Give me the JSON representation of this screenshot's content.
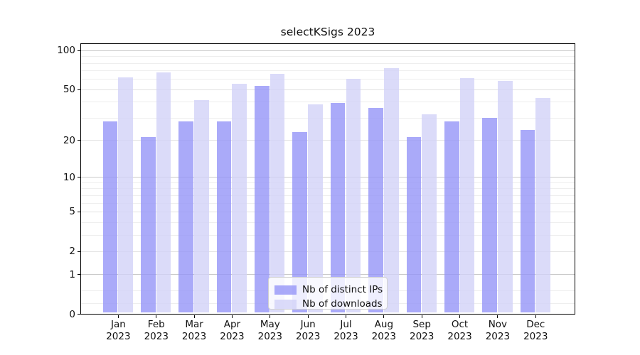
{
  "title": "selectKSigs 2023",
  "colors": {
    "bar_ips": "rgba(149,149,247,0.8)",
    "bar_downloads": "rgba(210,210,247,0.8)",
    "grid_major": "#c9c9c9",
    "grid_mid": "#e2e2e2",
    "grid_minor": "#eeeeee",
    "axis": "#000000",
    "text": "#111111"
  },
  "legend": {
    "entries": [
      {
        "label": "Nb of distinct IPs",
        "series": "ips"
      },
      {
        "label": "Nb of downloads",
        "series": "downloads"
      }
    ]
  },
  "y_axis": {
    "tick_labels": [
      "100",
      "50",
      "20",
      "10",
      "5",
      "2",
      "1",
      "0"
    ],
    "tick_values": [
      100,
      50,
      20,
      10,
      5,
      2,
      1,
      0
    ]
  },
  "x_axis": {
    "year_line": "2023",
    "months": [
      "Jan",
      "Feb",
      "Mar",
      "Apr",
      "May",
      "Jun",
      "Jul",
      "Aug",
      "Sep",
      "Oct",
      "Nov",
      "Dec"
    ]
  },
  "chart_data": {
    "type": "bar",
    "title": "selectKSigs 2023",
    "categories": [
      "Jan 2023",
      "Feb 2023",
      "Mar 2023",
      "Apr 2023",
      "May 2023",
      "Jun 2023",
      "Jul 2023",
      "Aug 2023",
      "Sep 2023",
      "Oct 2023",
      "Nov 2023",
      "Dec 2023"
    ],
    "series": [
      {
        "name": "Nb of distinct IPs",
        "values": [
          28,
          21,
          28,
          28,
          53,
          23,
          39,
          36,
          21,
          28,
          30,
          24
        ]
      },
      {
        "name": "Nb of downloads",
        "values": [
          62,
          68,
          41,
          55,
          66,
          38,
          60,
          73,
          32,
          61,
          58,
          43
        ]
      }
    ],
    "xlabel": "",
    "ylabel": "",
    "yscale": "symlog (position = log10(1+v))",
    "yticks": [
      0,
      1,
      2,
      5,
      10,
      20,
      50,
      100
    ],
    "ylim": [
      0,
      114
    ],
    "grid": true,
    "legend_position": "lower center"
  }
}
